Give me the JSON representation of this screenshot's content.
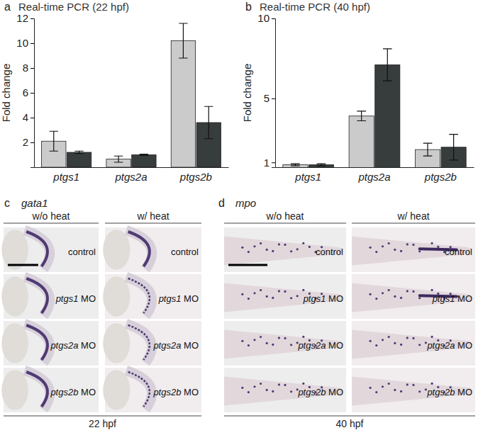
{
  "chart_data": [
    {
      "type": "bar",
      "title": "Real-time PCR (22 hpf)",
      "annotations": [
        "a"
      ],
      "y_label": "Fold change",
      "categories": [
        "ptgs1",
        "ptgs2a",
        "ptgs2b"
      ],
      "series": [
        {
          "color": "#cbcbcb",
          "values": [
            2.1,
            0.65,
            10.2
          ],
          "errors": [
            0.8,
            0.25,
            1.4
          ]
        },
        {
          "color": "#373c3c",
          "values": [
            1.2,
            1.0,
            3.6
          ],
          "errors": [
            0.1,
            0.05,
            1.3
          ]
        }
      ],
      "ylim": [
        0,
        12
      ],
      "yticks": [
        2,
        4,
        6,
        8,
        10,
        12
      ],
      "grid": false
    },
    {
      "type": "bar",
      "title": "Real-time PCR (40 hpf)",
      "annotations": [
        "b"
      ],
      "y_label": "Fold change",
      "categories": [
        "ptgs1",
        "ptgs2a",
        "ptgs2b"
      ],
      "series": [
        {
          "color": "#cbcbcb",
          "values": [
            0.85,
            3.9,
            1.8
          ],
          "errors": [
            0.07,
            0.3,
            0.4
          ]
        },
        {
          "color": "#373c3c",
          "values": [
            0.85,
            7.1,
            1.95
          ],
          "errors": [
            0.07,
            1.0,
            0.8
          ]
        }
      ],
      "ylim": [
        0.7,
        10
      ],
      "yticks": [
        1,
        5,
        10
      ],
      "grid": false
    }
  ],
  "image_panels": [
    {
      "label": "c",
      "gene": "gata1",
      "columns": [
        "w/o heat",
        "w/ heat"
      ],
      "rows": [
        "control",
        "ptgs1 MO",
        "ptgs2a MO",
        "ptgs2b MO"
      ],
      "stage": "22 hpf"
    },
    {
      "label": "d",
      "gene": "mpo",
      "columns": [
        "w/o heat",
        "w/ heat"
      ],
      "rows": [
        "control",
        "ptgs1 MO",
        "ptgs2a MO",
        "ptgs2b MO"
      ],
      "stage": "40 hpf"
    }
  ]
}
